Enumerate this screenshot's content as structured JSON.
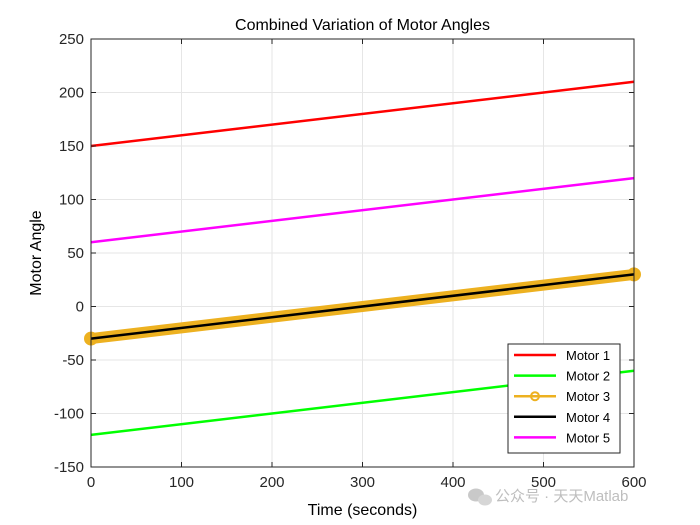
{
  "chart_data": {
    "type": "line",
    "title": "Combined Variation of Motor Angles",
    "xlabel": "Time (seconds)",
    "ylabel": "Motor Angle",
    "xlim": [
      0,
      600
    ],
    "ylim": [
      -150,
      250
    ],
    "xticks": [
      0,
      100,
      200,
      300,
      400,
      500,
      600
    ],
    "yticks": [
      -150,
      -100,
      -50,
      0,
      50,
      100,
      150,
      200,
      250
    ],
    "grid": true,
    "legend_position": "bottom-right",
    "series": [
      {
        "name": "Motor 1",
        "color": "#ff0000",
        "marker": "none",
        "x": [
          0,
          600
        ],
        "y": [
          150,
          210
        ]
      },
      {
        "name": "Motor 2",
        "color": "#00ff00",
        "marker": "none",
        "x": [
          0,
          600
        ],
        "y": [
          -120,
          -60
        ]
      },
      {
        "name": "Motor 3",
        "color": "#edb120",
        "marker": "circle",
        "x": [
          0,
          600
        ],
        "y": [
          -30,
          30
        ]
      },
      {
        "name": "Motor 4",
        "color": "#000000",
        "marker": "none",
        "x": [
          0,
          600
        ],
        "y": [
          -30,
          30
        ]
      },
      {
        "name": "Motor 5",
        "color": "#ff00ff",
        "marker": "none",
        "x": [
          0,
          600
        ],
        "y": [
          60,
          120
        ]
      }
    ]
  },
  "watermark": {
    "icon": "wechat-icon",
    "text": "公众号 · 天天Matlab"
  }
}
